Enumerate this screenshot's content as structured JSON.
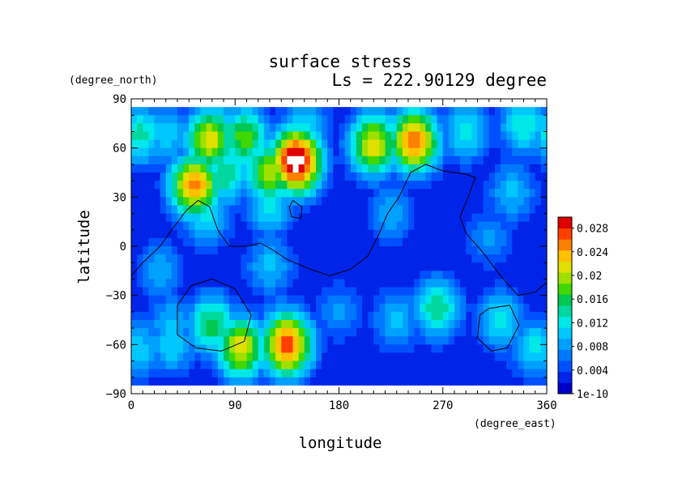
{
  "chart_data": {
    "type": "heatmap",
    "title": "surface stress",
    "subtitle": "Ls = 222.90129 degree",
    "xlabel": "longitude",
    "ylabel": "latitude",
    "x_units": "(degree_east)",
    "y_units": "(degree_north)",
    "xlim": [
      0,
      360
    ],
    "ylim": [
      -90,
      90
    ],
    "x_ticks": [
      "0",
      "90",
      "180",
      "270",
      "360"
    ],
    "y_ticks": [
      "90",
      "60",
      "30",
      "0",
      "−30",
      "−60",
      "−90"
    ],
    "grid": false,
    "colorbar": {
      "placement": "right",
      "labels": [
        "1e-10",
        "0.004",
        "0.008",
        "0.012",
        "0.016",
        "0.02",
        "0.024",
        "0.028"
      ],
      "colors": [
        "#0000c8",
        "#0024e8",
        "#0050ff",
        "#0078ff",
        "#00a0ff",
        "#00c8ff",
        "#00e8e8",
        "#00d8a0",
        "#00c850",
        "#40d800",
        "#a0e000",
        "#e0e000",
        "#ffc000",
        "#ff8000",
        "#ff4000",
        "#e00000"
      ]
    },
    "background_level": 0.003,
    "features": [
      {
        "lon": 55,
        "lat": 37,
        "value": 0.025
      },
      {
        "lon": 82,
        "lat": 44,
        "value": 0.015
      },
      {
        "lon": 68,
        "lat": 65,
        "value": 0.022
      },
      {
        "lon": 98,
        "lat": 66,
        "value": 0.018
      },
      {
        "lon": 30,
        "lat": 68,
        "value": 0.011
      },
      {
        "lon": 8,
        "lat": 68,
        "value": 0.014
      },
      {
        "lon": 150,
        "lat": 72,
        "value": 0.012
      },
      {
        "lon": 290,
        "lat": 70,
        "value": 0.012
      },
      {
        "lon": 340,
        "lat": 74,
        "value": 0.013
      },
      {
        "lon": 143,
        "lat": 52,
        "value": 0.032
      },
      {
        "lon": 120,
        "lat": 45,
        "value": 0.02
      },
      {
        "lon": 210,
        "lat": 62,
        "value": 0.022
      },
      {
        "lon": 245,
        "lat": 64,
        "value": 0.026
      },
      {
        "lon": 65,
        "lat": 18,
        "value": 0.012
      },
      {
        "lon": 120,
        "lat": 25,
        "value": 0.012
      },
      {
        "lon": 330,
        "lat": 33,
        "value": 0.01
      },
      {
        "lon": 120,
        "lat": -12,
        "value": 0.01
      },
      {
        "lon": 25,
        "lat": -15,
        "value": 0.009
      },
      {
        "lon": 70,
        "lat": -48,
        "value": 0.016
      },
      {
        "lon": 130,
        "lat": -48,
        "value": 0.01
      },
      {
        "lon": 35,
        "lat": -48,
        "value": 0.01
      },
      {
        "lon": 95,
        "lat": -62,
        "value": 0.022
      },
      {
        "lon": 135,
        "lat": -60,
        "value": 0.027
      },
      {
        "lon": 35,
        "lat": -60,
        "value": 0.011
      },
      {
        "lon": 265,
        "lat": -38,
        "value": 0.015
      },
      {
        "lon": 230,
        "lat": -45,
        "value": 0.01
      },
      {
        "lon": 320,
        "lat": -45,
        "value": 0.012
      },
      {
        "lon": 350,
        "lat": -62,
        "value": 0.012
      },
      {
        "lon": 5,
        "lat": -63,
        "value": 0.011
      },
      {
        "lon": 180,
        "lat": -40,
        "value": 0.008
      },
      {
        "lon": 225,
        "lat": 20,
        "value": 0.009
      },
      {
        "lon": 310,
        "lat": 5,
        "value": 0.008
      }
    ],
    "contours": [
      [
        [
          0,
          -18
        ],
        [
          10,
          -10
        ],
        [
          25,
          0
        ],
        [
          35,
          10
        ],
        [
          48,
          22
        ],
        [
          58,
          28
        ],
        [
          68,
          24
        ],
        [
          75,
          10
        ],
        [
          85,
          0
        ],
        [
          100,
          0
        ],
        [
          112,
          2
        ],
        [
          122,
          -2
        ],
        [
          135,
          -8
        ],
        [
          155,
          -14
        ],
        [
          172,
          -18
        ],
        [
          190,
          -14
        ],
        [
          205,
          -6
        ],
        [
          215,
          8
        ],
        [
          222,
          20
        ],
        [
          232,
          30
        ],
        [
          242,
          45
        ],
        [
          255,
          50
        ],
        [
          270,
          46
        ],
        [
          290,
          44
        ],
        [
          298,
          42
        ],
        [
          293,
          32
        ],
        [
          285,
          18
        ],
        [
          290,
          8
        ],
        [
          305,
          -4
        ],
        [
          320,
          -18
        ],
        [
          335,
          -30
        ],
        [
          350,
          -28
        ],
        [
          360,
          -22
        ]
      ],
      [
        [
          70,
          -20
        ],
        [
          90,
          -26
        ],
        [
          104,
          -42
        ],
        [
          98,
          -58
        ],
        [
          78,
          -64
        ],
        [
          56,
          -62
        ],
        [
          40,
          -54
        ],
        [
          40,
          -36
        ],
        [
          52,
          -24
        ],
        [
          70,
          -20
        ]
      ],
      [
        [
          310,
          -38
        ],
        [
          328,
          -36
        ],
        [
          336,
          -48
        ],
        [
          326,
          -62
        ],
        [
          312,
          -64
        ],
        [
          300,
          -56
        ],
        [
          302,
          -42
        ],
        [
          310,
          -38
        ]
      ],
      [
        [
          140,
          28
        ],
        [
          148,
          24
        ],
        [
          147,
          17
        ],
        [
          139,
          18
        ],
        [
          137,
          24
        ],
        [
          140,
          28
        ]
      ]
    ]
  }
}
